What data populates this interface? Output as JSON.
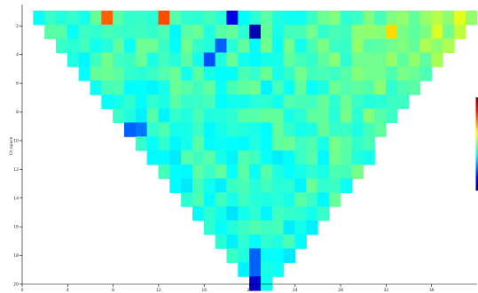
{
  "chart_data": {
    "type": "heatmap",
    "title": "",
    "xlabel": "",
    "ylabel": "Ch space",
    "xlim": [
      0,
      40
    ],
    "ylim": [
      20,
      0.5
    ],
    "x_ticks": [
      "0",
      "4",
      "8",
      "12",
      "16",
      "20",
      "24",
      "28",
      "32",
      "36"
    ],
    "y_ticks": [
      "2",
      "4",
      "6",
      "8",
      "10",
      "12",
      "14",
      "16",
      "18",
      "20"
    ],
    "grid": false,
    "colormap": "jet",
    "colorbar": true,
    "shape": "inverted triangle (V)",
    "value_range": [
      0,
      1
    ],
    "anomalies": [
      {
        "row": 1,
        "col": 7,
        "value": 0.78
      },
      {
        "row": 1,
        "col": 12,
        "value": 0.8
      },
      {
        "row": 1,
        "col": 18,
        "value": 0.1
      },
      {
        "row": 2,
        "col": 20,
        "value": 0.05
      },
      {
        "row": 2,
        "col": 32,
        "value": 0.66
      },
      {
        "row": 3,
        "col": 17,
        "value": 0.22
      },
      {
        "row": 4,
        "col": 16,
        "value": 0.2
      },
      {
        "row": 9,
        "col": 9,
        "value": 0.22
      },
      {
        "row": 9,
        "col": 10,
        "value": 0.24
      },
      {
        "row": 11,
        "col": 10,
        "value": 0.25
      },
      {
        "row": 12,
        "col": 10,
        "value": 0.27
      },
      {
        "row": 18,
        "col": 20,
        "value": 0.22
      },
      {
        "row": 19,
        "col": 20,
        "value": 0.22
      },
      {
        "row": 20,
        "col": 20,
        "value": 0.08
      }
    ]
  }
}
